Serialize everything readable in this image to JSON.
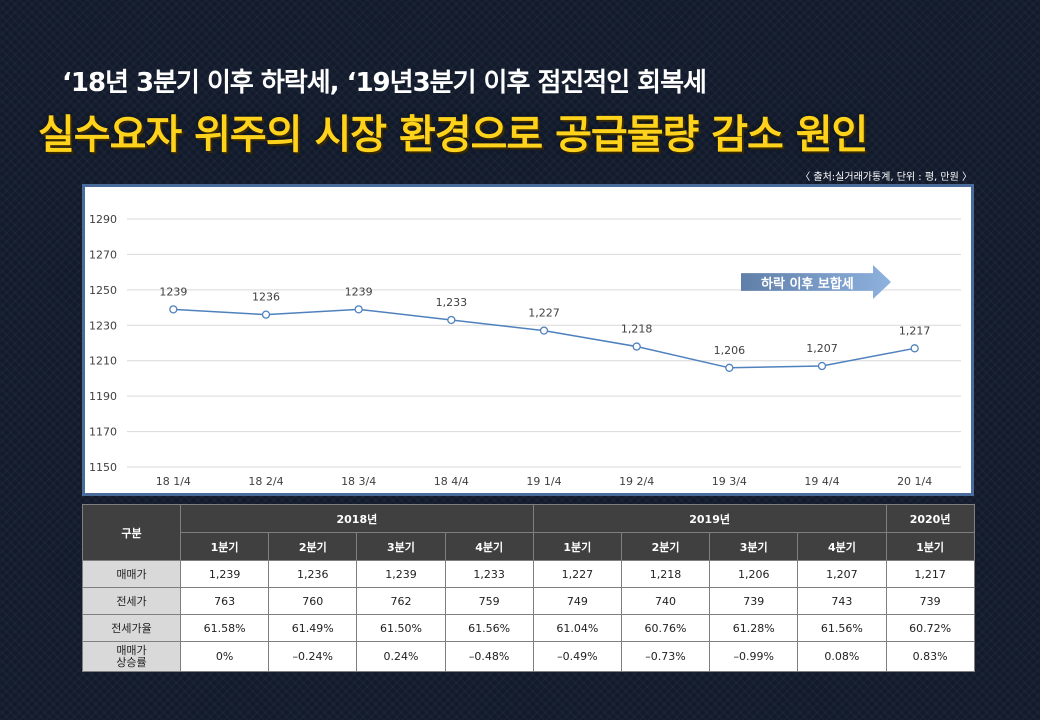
{
  "headline": "‘18년 3분기 이후 하락세, ‘19년3분기 이후 점진적인 회복세",
  "subhead": "실수요자 위주의 시장 환경으로 공급물량 감소 원인",
  "source": "〈 출처:실거래가통계, 단위 : 평, 만원 〉",
  "trend_label": "하락 이후 보합세",
  "colors": {
    "line": "#4f81bd",
    "subhead": "#ffd21c",
    "background": "#121b2c",
    "table_header": "#404040",
    "row_label": "#d9d9d9"
  },
  "chart_data": {
    "type": "line",
    "categories": [
      "18 1/4",
      "18 2/4",
      "18 3/4",
      "18 4/4",
      "19 1/4",
      "19 2/4",
      "19 3/4",
      "19 4/4",
      "20 1/4"
    ],
    "values": [
      1239,
      1236,
      1239,
      1233,
      1227,
      1218,
      1206,
      1207,
      1217
    ],
    "data_labels": [
      "1239",
      "1236",
      "1239",
      "1,233",
      "1,227",
      "1,218",
      "1,206",
      "1,207",
      "1,217"
    ],
    "ylim": [
      1150,
      1290
    ],
    "yticks": [
      "1290",
      "1270",
      "1250",
      "1230",
      "1210",
      "1190",
      "1170",
      "1150"
    ],
    "grid": true,
    "marker": "open-circle"
  },
  "table": {
    "corner": "구분",
    "years": [
      {
        "label": "2018년",
        "span": 4
      },
      {
        "label": "2019년",
        "span": 4
      },
      {
        "label": "2020년",
        "span": 1
      }
    ],
    "quarters": [
      "1분기",
      "2분기",
      "3분기",
      "4분기",
      "1분기",
      "2분기",
      "3분기",
      "4분기",
      "1분기"
    ],
    "rows": [
      {
        "label": "매매가",
        "values": [
          "1,239",
          "1,236",
          "1,239",
          "1,233",
          "1,227",
          "1,218",
          "1,206",
          "1,207",
          "1,217"
        ]
      },
      {
        "label": "전세가",
        "values": [
          "763",
          "760",
          "762",
          "759",
          "749",
          "740",
          "739",
          "743",
          "739"
        ]
      },
      {
        "label": "전세가율",
        "values": [
          "61.58%",
          "61.49%",
          "61.50%",
          "61.56%",
          "61.04%",
          "60.76%",
          "61.28%",
          "61.56%",
          "60.72%"
        ]
      },
      {
        "label": "매매가\n상승률",
        "values": [
          "0%",
          "–0.24%",
          "0.24%",
          "–0.48%",
          "–0.49%",
          "–0.73%",
          "–0.99%",
          "0.08%",
          "0.83%"
        ]
      }
    ]
  }
}
